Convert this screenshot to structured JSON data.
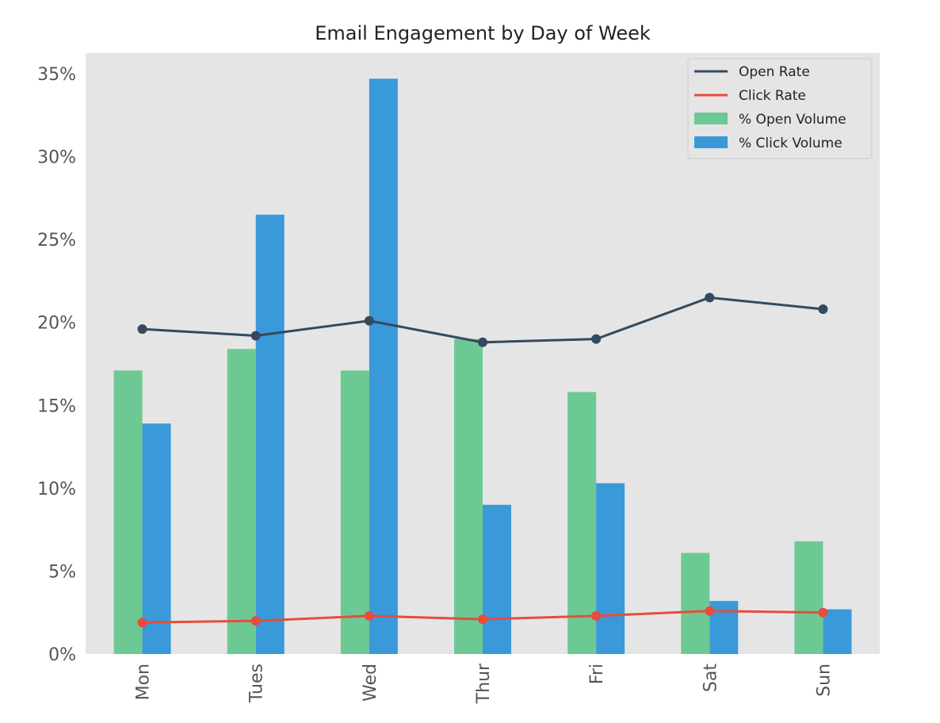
{
  "chart_data": {
    "type": "bar",
    "title": "Email Engagement by Day of Week",
    "xlabel": "",
    "ylabel": "",
    "categories": [
      "Mon",
      "Tues",
      "Wed",
      "Thur",
      "Fri",
      "Sat",
      "Sun"
    ],
    "ylim": [
      0,
      35
    ],
    "yticks": [
      0,
      5,
      10,
      15,
      20,
      25,
      30,
      35
    ],
    "ytick_labels": [
      "0%",
      "5%",
      "10%",
      "15%",
      "20%",
      "25%",
      "30%",
      "35%"
    ],
    "grid": false,
    "legend_position": "top-right",
    "bar_series": [
      {
        "name": "% Open Volume",
        "color": "#6dc993",
        "values": [
          17.1,
          18.4,
          17.1,
          19.0,
          15.8,
          6.1,
          6.8
        ]
      },
      {
        "name": "% Click Volume",
        "color": "#3a99d9",
        "values": [
          13.9,
          26.5,
          34.7,
          9.0,
          10.3,
          3.2,
          2.7
        ]
      }
    ],
    "line_series": [
      {
        "name": "Open Rate",
        "color": "#34495e",
        "values": [
          19.6,
          19.2,
          20.1,
          18.8,
          19.0,
          21.5,
          20.8
        ]
      },
      {
        "name": "Click Rate",
        "color": "#e74c3c",
        "values": [
          1.9,
          2.0,
          2.3,
          2.1,
          2.3,
          2.6,
          2.5
        ]
      }
    ],
    "legend_order": [
      "Open Rate",
      "Click Rate",
      "% Open Volume",
      "% Click Volume"
    ],
    "background": "#e5e5e5"
  }
}
